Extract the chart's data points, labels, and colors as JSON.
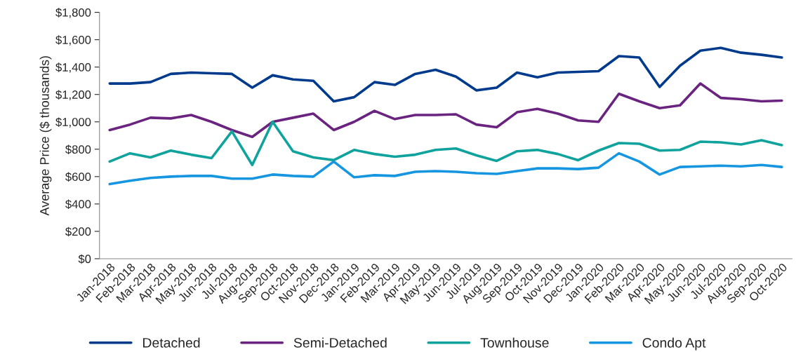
{
  "chart_data": {
    "type": "line",
    "ylabel": "Average Price ($ thousands)",
    "categories": [
      "Jan-2018",
      "Feb-2018",
      "Mar-2018",
      "Apr-2018",
      "May-2018",
      "Jun-2018",
      "Jul-2018",
      "Aug-2018",
      "Sep-2018",
      "Oct-2018",
      "Nov-2018",
      "Dec-2018",
      "Jan-2019",
      "Feb-2019",
      "Mar-2019",
      "Apr-2019",
      "May-2019",
      "Jun-2019",
      "Jul-2019",
      "Aug-2019",
      "Sep-2019",
      "Oct-2019",
      "Nov-2019",
      "Dec-2019",
      "Jan-2020",
      "Feb-2020",
      "Mar-2020",
      "Apr-2020",
      "May-2020",
      "Jun-2020",
      "Jul-2020",
      "Aug-2020",
      "Sep-2020",
      "Oct-2020"
    ],
    "series": [
      {
        "name": "Detached",
        "color": "#003a8c",
        "values": [
          1280,
          1280,
          1290,
          1350,
          1360,
          1355,
          1350,
          1250,
          1340,
          1310,
          1300,
          1150,
          1180,
          1290,
          1270,
          1350,
          1380,
          1330,
          1230,
          1250,
          1360,
          1325,
          1360,
          1365,
          1370,
          1480,
          1470,
          1255,
          1410,
          1520,
          1540,
          1505,
          1490,
          1470
        ]
      },
      {
        "name": "Semi-Detached",
        "color": "#6a2480",
        "values": [
          940,
          980,
          1030,
          1025,
          1050,
          1000,
          940,
          890,
          1000,
          1030,
          1060,
          940,
          1000,
          1080,
          1020,
          1050,
          1050,
          1055,
          980,
          960,
          1070,
          1095,
          1060,
          1010,
          1000,
          1205,
          1150,
          1100,
          1120,
          1280,
          1175,
          1165,
          1150,
          1155
        ]
      },
      {
        "name": "Townhouse",
        "color": "#10a29c",
        "values": [
          710,
          770,
          740,
          790,
          760,
          735,
          930,
          685,
          1000,
          785,
          740,
          720,
          795,
          765,
          745,
          760,
          795,
          805,
          755,
          715,
          785,
          795,
          765,
          720,
          790,
          845,
          840,
          790,
          795,
          855,
          850,
          835,
          865,
          830
        ]
      },
      {
        "name": "Condo Apt",
        "color": "#1696e0",
        "values": [
          545,
          570,
          590,
          600,
          605,
          605,
          585,
          585,
          615,
          605,
          600,
          710,
          595,
          610,
          605,
          635,
          640,
          635,
          625,
          620,
          640,
          660,
          660,
          655,
          665,
          770,
          710,
          615,
          670,
          675,
          680,
          675,
          685,
          670
        ]
      }
    ],
    "ylim": [
      0,
      1800
    ],
    "yticks": [
      {
        "value": 0,
        "label": "$0"
      },
      {
        "value": 200,
        "label": "$200"
      },
      {
        "value": 400,
        "label": "$400"
      },
      {
        "value": 600,
        "label": "$600"
      },
      {
        "value": 800,
        "label": "$800"
      },
      {
        "value": 1000,
        "label": "$1,000"
      },
      {
        "value": 1200,
        "label": "$1,200"
      },
      {
        "value": 1400,
        "label": "$1,400"
      },
      {
        "value": 1600,
        "label": "$1,600"
      },
      {
        "value": 1800,
        "label": "$1,800"
      }
    ],
    "grid": false,
    "legend": "bottom",
    "marker": "none",
    "line_style": "solid"
  }
}
